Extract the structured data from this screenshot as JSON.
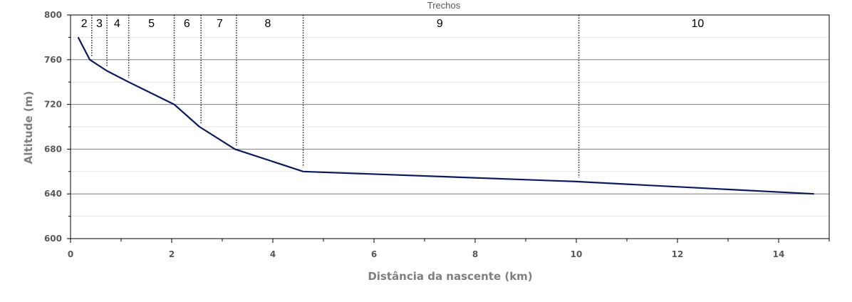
{
  "chart_data": {
    "type": "line",
    "title": "Trechos",
    "xlabel": "Distância da nascente (km)",
    "ylabel": "Altitude (m)",
    "xlim": [
      0,
      15
    ],
    "ylim": [
      600,
      800
    ],
    "x_ticks": [
      0,
      2,
      4,
      6,
      8,
      10,
      12,
      14
    ],
    "y_ticks": [
      600,
      640,
      680,
      720,
      760,
      800
    ],
    "grid": "horizontal major lines at 640, 680, 720, 760; faint minor lines at 620, 660, 700, 740, 780",
    "series": [
      {
        "x": [
          0.15,
          0.38,
          0.72,
          1.15,
          2.05,
          2.55,
          3.25,
          4.6,
          10.0,
          14.7
        ],
        "y": [
          780,
          760,
          750,
          740,
          720,
          700,
          680,
          660,
          651,
          640
        ]
      }
    ],
    "sections": {
      "boundaries_km": [
        0.42,
        0.72,
        1.15,
        2.05,
        2.58,
        3.28,
        4.6,
        10.05
      ],
      "labels": [
        {
          "text": "2",
          "x": 0.27
        },
        {
          "text": "3",
          "x": 0.57
        },
        {
          "text": "4",
          "x": 0.92
        },
        {
          "text": "5",
          "x": 1.6
        },
        {
          "text": "6",
          "x": 2.3
        },
        {
          "text": "7",
          "x": 2.95
        },
        {
          "text": "8",
          "x": 3.9
        },
        {
          "text": "9",
          "x": 7.3
        },
        {
          "text": "10",
          "x": 12.4
        }
      ]
    }
  },
  "colors": {
    "line": "#0b1a5c",
    "major_grid": "#7f7f7f",
    "minor_grid": "#e6e6e6",
    "section_divider": "#333333",
    "axis": "#000000"
  }
}
